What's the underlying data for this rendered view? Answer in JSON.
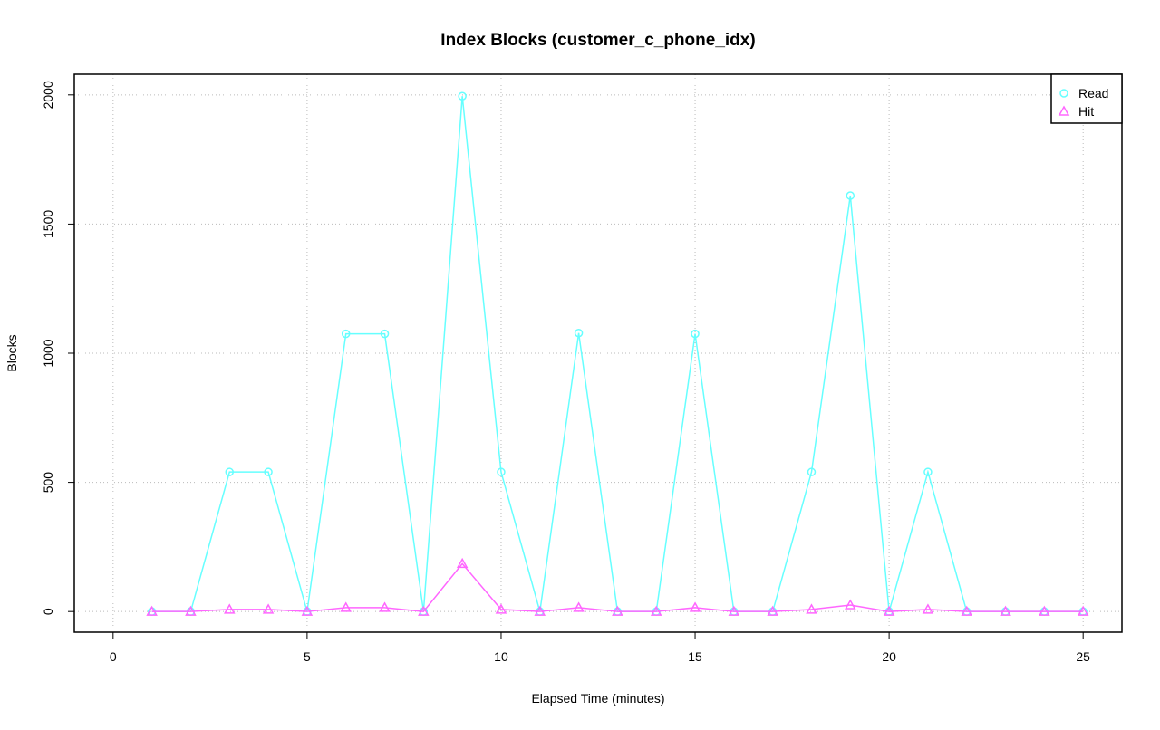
{
  "chart_data": {
    "type": "line",
    "title": "Index Blocks (customer_c_phone_idx)",
    "x_label": "Elapsed Time (minutes)",
    "y_label": "Blocks",
    "x": [
      1,
      2,
      3,
      4,
      5,
      6,
      7,
      8,
      9,
      10,
      11,
      12,
      13,
      14,
      15,
      16,
      17,
      18,
      19,
      20,
      21,
      22,
      23,
      24,
      25
    ],
    "series": [
      {
        "name": "Read",
        "color": "#66ffff",
        "marker": "circle",
        "values": [
          0,
          0,
          540,
          540,
          0,
          1075,
          1075,
          0,
          1995,
          540,
          0,
          1078,
          0,
          0,
          1075,
          0,
          0,
          540,
          1610,
          0,
          540,
          0,
          0,
          0,
          0
        ]
      },
      {
        "name": "Hit",
        "color": "#ff66ff",
        "marker": "triangle",
        "values": [
          0,
          0,
          8,
          8,
          0,
          15,
          15,
          0,
          185,
          8,
          0,
          15,
          0,
          0,
          15,
          0,
          0,
          8,
          25,
          0,
          8,
          0,
          0,
          0,
          0
        ]
      }
    ],
    "xlim": [
      -1,
      26
    ],
    "ylim": [
      -80,
      2080
    ],
    "xticks": [
      0,
      5,
      10,
      15,
      20,
      25
    ],
    "yticks": [
      0,
      500,
      1000,
      1500,
      2000
    ],
    "grid": true,
    "legend": "top-right"
  }
}
